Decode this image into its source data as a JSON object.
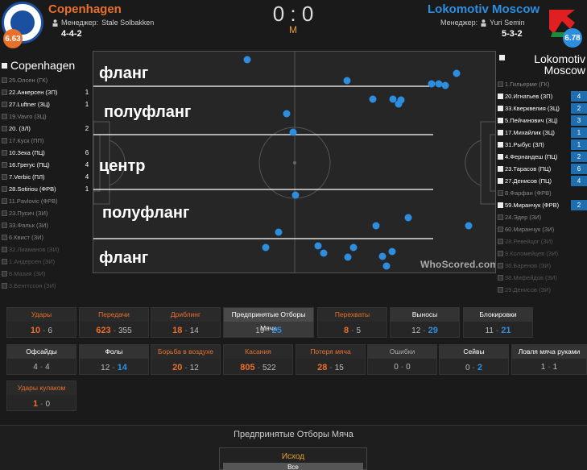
{
  "header": {
    "home": {
      "name": "Copenhagen",
      "rating": "6.63",
      "manager_label": "Менеджер:",
      "manager": "Stale Solbakken",
      "formation": "4-4-2",
      "logo_text": "F.C. KØBENHAVN"
    },
    "away": {
      "name": "Lokomotiv Moscow",
      "rating": "6.78",
      "manager_label": "Менеджер:",
      "manager": "Yuri Semin",
      "formation": "5-3-2"
    },
    "score": "0 : 0",
    "period": "M"
  },
  "home_lineup": {
    "title": "Copenhagen",
    "players": [
      {
        "name": "25.Олсен (ГК)",
        "count": "",
        "state": "bench",
        "checked": false
      },
      {
        "name": "22.Анкерсен (ЗП)",
        "count": "1",
        "state": "act",
        "checked": false
      },
      {
        "name": "27.Luftner (ЗЦ)",
        "count": "1",
        "state": "act",
        "checked": false
      },
      {
        "name": "19.Vavro (ЗЦ)",
        "count": "",
        "state": "bench",
        "checked": false
      },
      {
        "name": "20. (ЗЛ)",
        "count": "2",
        "state": "act",
        "checked": false
      },
      {
        "name": "17.Куск (ПП)",
        "count": "",
        "state": "bench",
        "checked": false
      },
      {
        "name": "10.Зека (ПЦ)",
        "count": "6",
        "state": "act",
        "checked": false
      },
      {
        "name": "16.Грегус (ПЦ)",
        "count": "4",
        "state": "act",
        "checked": false
      },
      {
        "name": "7.Verbic (ПЛ)",
        "count": "4",
        "state": "act",
        "checked": false
      },
      {
        "name": "28.Sotiriou (ФРВ)",
        "count": "1",
        "state": "act",
        "checked": false
      },
      {
        "name": "11.Pavlovic (ФРВ)",
        "count": "",
        "state": "bench",
        "checked": false
      },
      {
        "name": "23.Пусич (ЗИ)",
        "count": "",
        "state": "bench",
        "checked": false
      },
      {
        "name": "33.Фальк (ЗИ)",
        "count": "",
        "state": "bench",
        "checked": false
      },
      {
        "name": "6.Квист (ЗИ)",
        "count": "",
        "state": "bench",
        "checked": false
      },
      {
        "name": "32.Лиаманов (ЗИ)",
        "count": "",
        "state": "unused",
        "checked": false
      },
      {
        "name": "1.Андерсен (ЗИ)",
        "count": "",
        "state": "unused",
        "checked": false
      },
      {
        "name": "8.Мазия (ЗИ)",
        "count": "",
        "state": "unused",
        "checked": false
      },
      {
        "name": "3.Бенгтссон (ЗИ)",
        "count": "",
        "state": "unused",
        "checked": false
      }
    ]
  },
  "away_lineup": {
    "title": "Lokomotiv Moscow",
    "players": [
      {
        "name": "1.Гильерме (ГК)",
        "count": "",
        "state": "bench",
        "checked": false
      },
      {
        "name": "20.Игнатьев (ЗП)",
        "count": "4",
        "state": "act",
        "checked": true
      },
      {
        "name": "33.Кверквелия (ЗЦ)",
        "count": "2",
        "state": "act",
        "checked": true
      },
      {
        "name": "5.Пейчинович (ЗЦ)",
        "count": "3",
        "state": "act",
        "checked": true
      },
      {
        "name": "17.Михайлик (ЗЦ)",
        "count": "1",
        "state": "act",
        "checked": true
      },
      {
        "name": "31.Рыбус (ЗЛ)",
        "count": "1",
        "state": "act",
        "checked": true
      },
      {
        "name": "4.Фернандеш (ПЦ)",
        "count": "2",
        "state": "act",
        "checked": true
      },
      {
        "name": "23.Тарасов (ПЦ)",
        "count": "6",
        "state": "act",
        "checked": true
      },
      {
        "name": "27.Денисов (ПЦ)",
        "count": "4",
        "state": "act",
        "checked": true
      },
      {
        "name": "8.Фарфан (ФРВ)",
        "count": "",
        "state": "bench",
        "checked": false
      },
      {
        "name": "59.Миранчук (ФРВ)",
        "count": "2",
        "state": "act",
        "checked": true
      },
      {
        "name": "24.Эдер (ЗИ)",
        "count": "",
        "state": "bench",
        "checked": false
      },
      {
        "name": "60.Миранчук (ЗИ)",
        "count": "",
        "state": "bench",
        "checked": false
      },
      {
        "name": "28.Ревейцог (ЗИ)",
        "count": "",
        "state": "unused",
        "checked": false
      },
      {
        "name": "9.Коломейцев (ЗИ)",
        "count": "",
        "state": "unused",
        "checked": false
      },
      {
        "name": "36.Баренов (ЗИ)",
        "count": "",
        "state": "unused",
        "checked": false
      },
      {
        "name": "38.Мифейдов (ЗИ)",
        "count": "",
        "state": "unused",
        "checked": false
      },
      {
        "name": "29.Денисов (ЗИ)",
        "count": "",
        "state": "unused",
        "checked": false
      }
    ]
  },
  "pitch": {
    "zones": [
      "фланг",
      "полуфланг",
      "центр",
      "полуфланг",
      "фланг"
    ],
    "watermark": "WhoScored.com",
    "dot_color": "#2d8ee0"
  },
  "stats": [
    {
      "label": "Удары",
      "home": "10",
      "away": "6",
      "lead": "home"
    },
    {
      "label": "Передачи",
      "home": "623",
      "away": "355",
      "lead": "home"
    },
    {
      "label": "Дриблинг",
      "home": "18",
      "away": "14",
      "lead": "home"
    },
    {
      "label": "Предпринятые Отборы Мяча",
      "home": "19",
      "away": "25",
      "lead": "away",
      "selected": true
    },
    {
      "label": "Перехваты",
      "home": "8",
      "away": "5",
      "lead": "home"
    },
    {
      "label": "Выносы",
      "home": "12",
      "away": "29",
      "lead": "away"
    },
    {
      "label": "Блокировки",
      "home": "11",
      "away": "21",
      "lead": "away"
    },
    {
      "label": "Офсайды",
      "home": "4",
      "away": "4",
      "lead": "tie"
    },
    {
      "label": "Фолы",
      "home": "12",
      "away": "14",
      "lead": "away"
    },
    {
      "label": "Борьба в воздухе",
      "home": "20",
      "away": "12",
      "lead": "home"
    },
    {
      "label": "Касания",
      "home": "805",
      "away": "522",
      "lead": "home"
    },
    {
      "label": "Потеря мяча",
      "home": "28",
      "away": "15",
      "lead": "home"
    },
    {
      "label": "Ошибки",
      "home": "0",
      "away": "0",
      "lead": "zero"
    },
    {
      "label": "Сейвы",
      "home": "0",
      "away": "2",
      "lead": "away"
    },
    {
      "label": "Ловля мяча руками",
      "home": "1",
      "away": "1",
      "lead": "tie"
    },
    {
      "label": "Удары кулаком",
      "home": "1",
      "away": "0",
      "lead": "home"
    }
  ],
  "section": {
    "title": "Предпринятые Отборы Мяча",
    "filter_label": "Исход",
    "filter_value": "Все"
  }
}
